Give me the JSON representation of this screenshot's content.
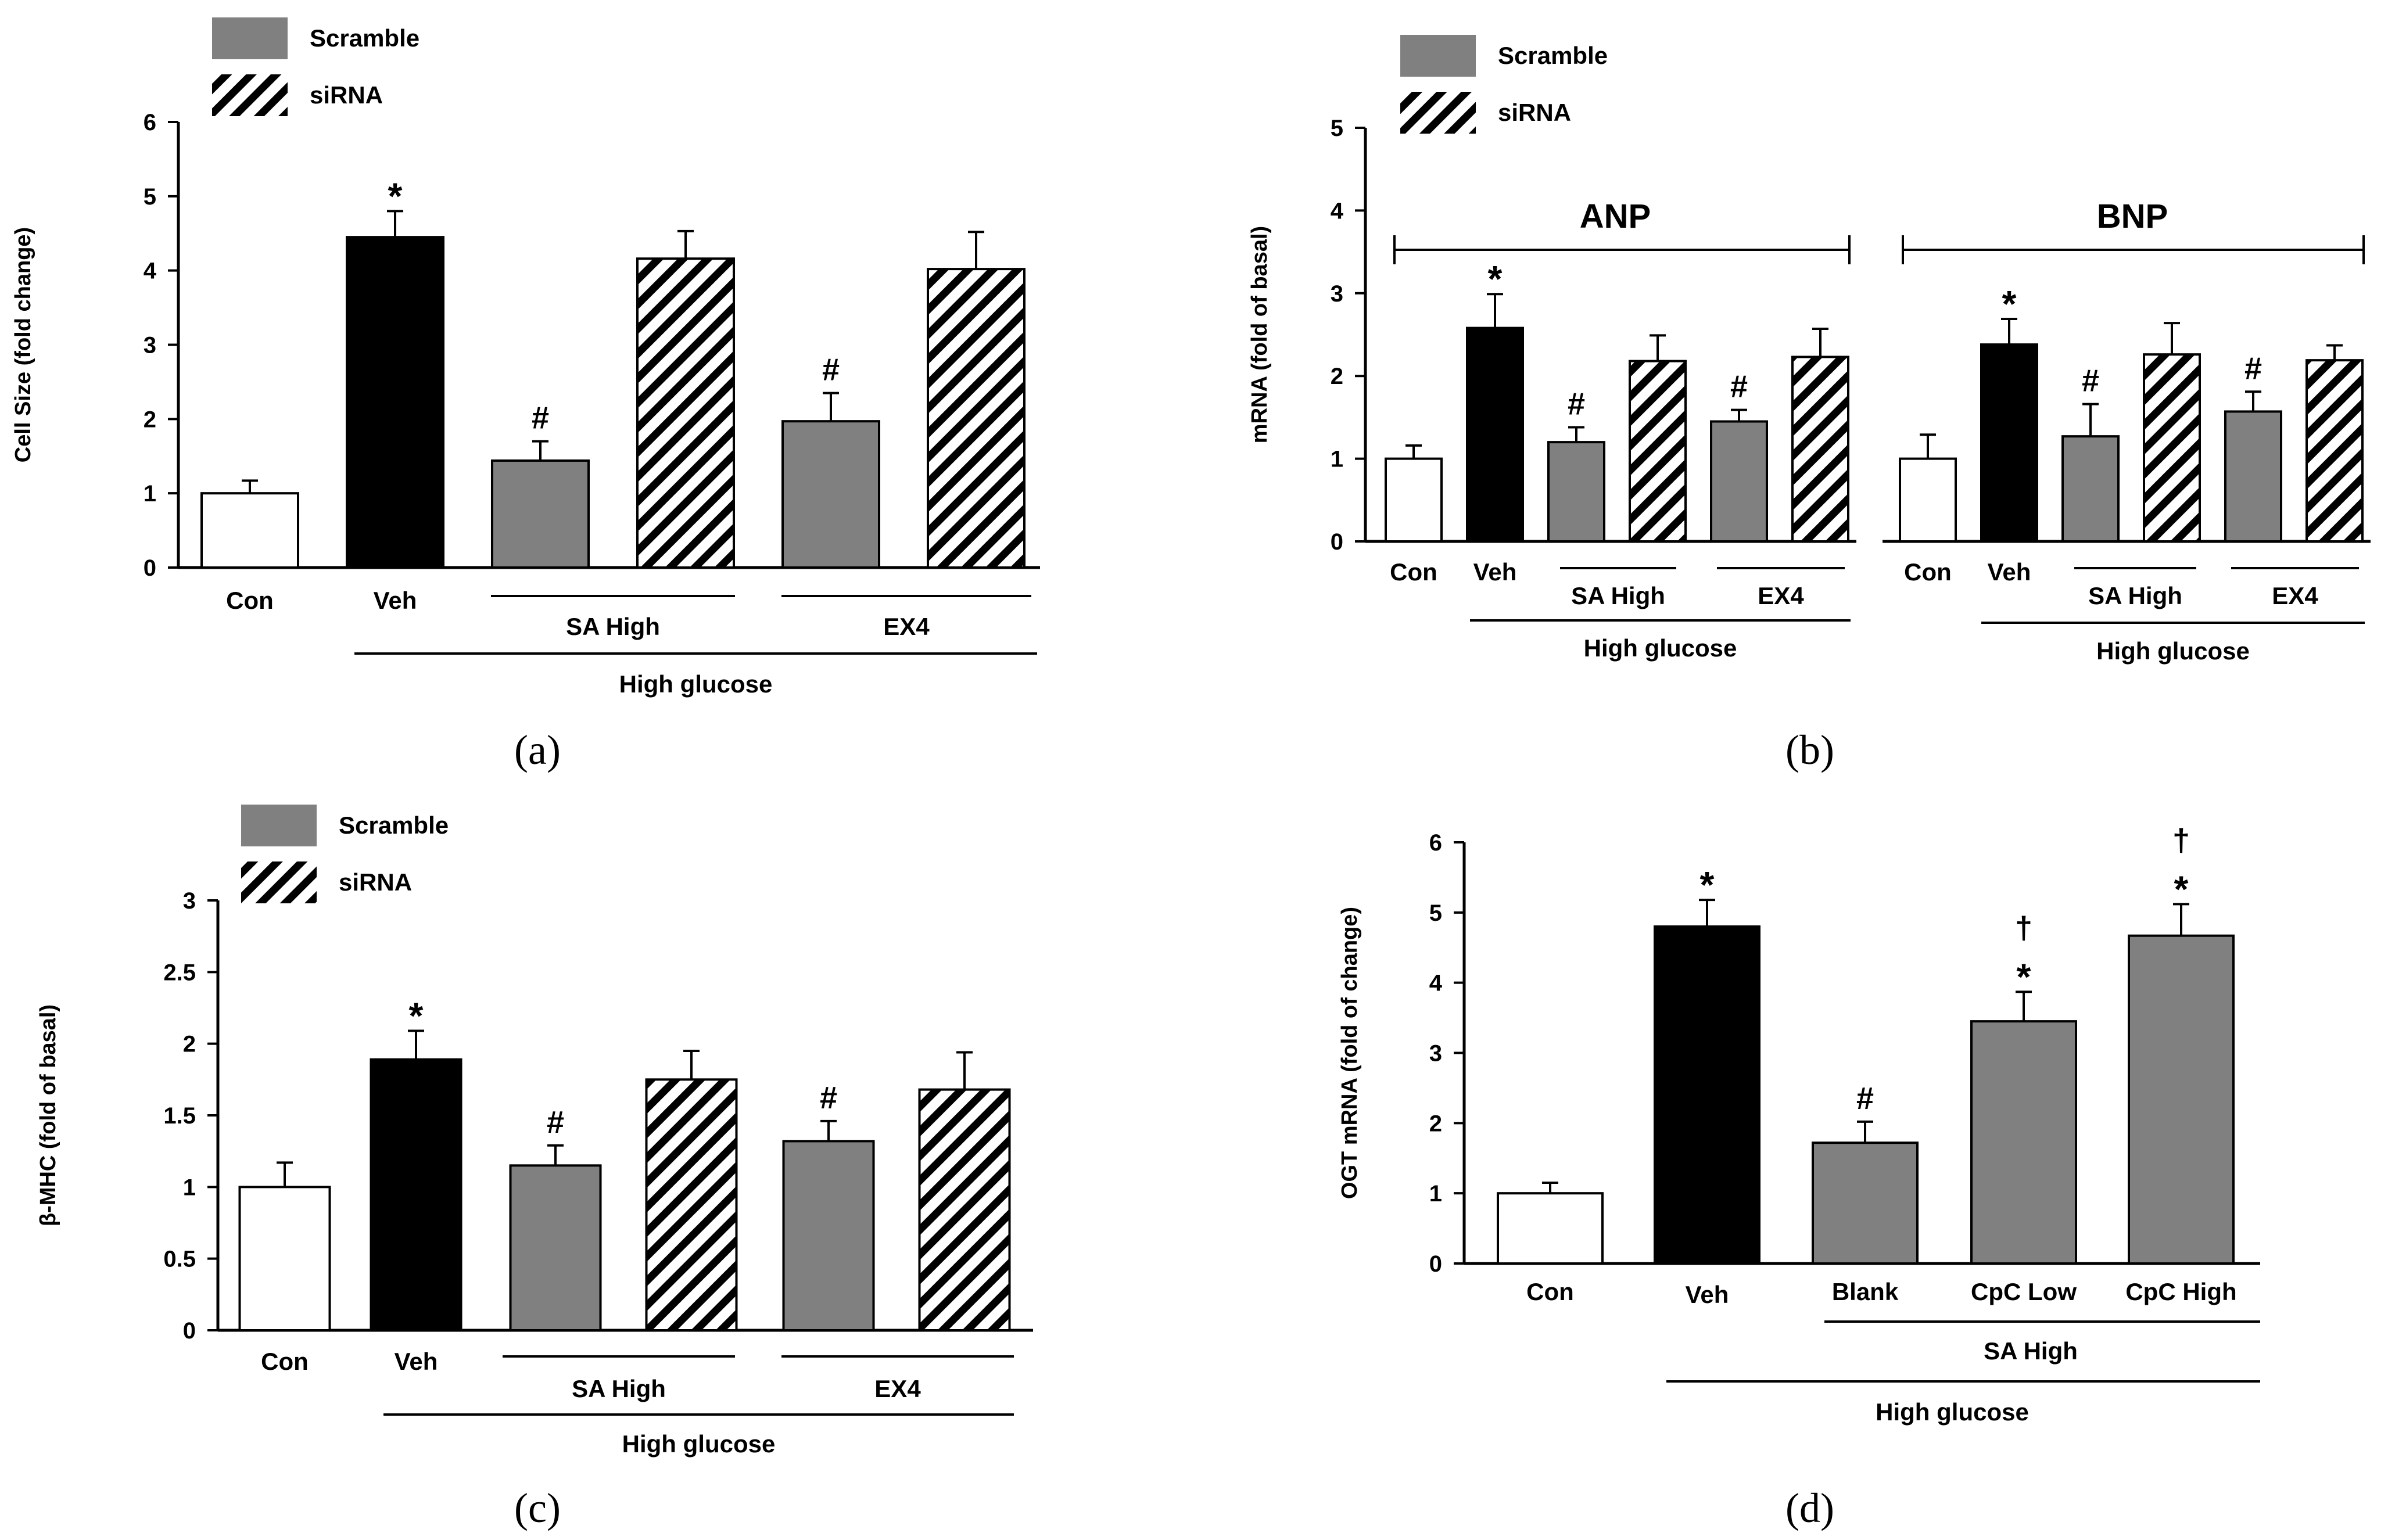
{
  "colors": {
    "white": "#ffffff",
    "black": "#000000",
    "gray": "#808080",
    "axis": "#000000"
  },
  "chart_data": [
    {
      "panel_label": "(a)",
      "type": "bar",
      "ylabel": "Cell Size (fold change)",
      "ylim": [
        0,
        6
      ],
      "yticks": [
        "0",
        "1",
        "2",
        "3",
        "4",
        "5",
        "6"
      ],
      "legend": [
        "Scramble",
        "siRNA"
      ],
      "categories": [
        "Con",
        "Veh",
        "SA High",
        "SA High",
        "EX4",
        "EX4"
      ],
      "fills": [
        "white",
        "black",
        "gray",
        "hatch",
        "gray",
        "hatch"
      ],
      "values": [
        1.0,
        4.45,
        1.44,
        4.16,
        1.97,
        4.02
      ],
      "errors": [
        0.17,
        0.35,
        0.26,
        0.37,
        0.38,
        0.5
      ],
      "annotations": [
        "",
        "*",
        "#",
        "",
        "#",
        ""
      ],
      "x_labels": [
        "Con",
        "Veh"
      ],
      "sub_groups": [
        "SA High",
        "EX4"
      ],
      "group": "High glucose"
    },
    {
      "panel_label": "(b)",
      "type": "bar",
      "ylabel": "mRNA (fold of basal)",
      "ylim": [
        0,
        5
      ],
      "yticks": [
        "0",
        "1",
        "2",
        "3",
        "4",
        "5"
      ],
      "legend": [
        "Scramble",
        "siRNA"
      ],
      "groups": [
        {
          "name": "ANP",
          "categories": [
            "Con",
            "Veh",
            "SA High",
            "SA High",
            "EX4",
            "EX4"
          ],
          "fills": [
            "white",
            "black",
            "gray",
            "hatch",
            "gray",
            "hatch"
          ],
          "values": [
            1.0,
            2.58,
            1.2,
            2.18,
            1.45,
            2.23
          ],
          "errors": [
            0.16,
            0.41,
            0.18,
            0.31,
            0.14,
            0.34
          ],
          "annotations": [
            "",
            "*",
            "#",
            "",
            "#",
            ""
          ],
          "x_labels": [
            "Con",
            "Veh"
          ],
          "sub_groups": [
            "SA High",
            "EX4"
          ],
          "group": "High glucose"
        },
        {
          "name": "BNP",
          "categories": [
            "Con",
            "Veh",
            "SA High",
            "SA High",
            "EX4",
            "EX4"
          ],
          "fills": [
            "white",
            "black",
            "gray",
            "hatch",
            "gray",
            "hatch"
          ],
          "values": [
            1.0,
            2.38,
            1.27,
            2.26,
            1.57,
            2.19
          ],
          "errors": [
            0.29,
            0.31,
            0.39,
            0.38,
            0.24,
            0.18
          ],
          "annotations": [
            "",
            "*",
            "#",
            "",
            "#",
            ""
          ],
          "x_labels": [
            "Con",
            "Veh"
          ],
          "sub_groups": [
            "SA High",
            "EX4"
          ],
          "group": "High glucose"
        }
      ]
    },
    {
      "panel_label": "(c)",
      "type": "bar",
      "ylabel": "β-MHC (fold of basal)",
      "ylim": [
        0,
        3
      ],
      "yticks": [
        "0",
        "0.5",
        "1",
        "1.5",
        "2",
        "2.5",
        "3"
      ],
      "legend": [
        "Scramble",
        "siRNA"
      ],
      "categories": [
        "Con",
        "Veh",
        "SA High",
        "SA High",
        "EX4",
        "EX4"
      ],
      "fills": [
        "white",
        "black",
        "gray",
        "hatch",
        "gray",
        "hatch"
      ],
      "values": [
        1.0,
        1.89,
        1.15,
        1.75,
        1.32,
        1.68
      ],
      "errors": [
        0.17,
        0.2,
        0.14,
        0.2,
        0.14,
        0.26
      ],
      "annotations": [
        "",
        "*",
        "#",
        "",
        "#",
        ""
      ],
      "x_labels": [
        "Con",
        "Veh"
      ],
      "sub_groups": [
        "SA High",
        "EX4"
      ],
      "group": "High glucose"
    },
    {
      "panel_label": "(d)",
      "type": "bar",
      "ylabel": "OGT mRNA (fold of change)",
      "ylim": [
        0,
        6
      ],
      "yticks": [
        "0",
        "1",
        "2",
        "3",
        "4",
        "5",
        "6"
      ],
      "categories": [
        "Con",
        "Veh",
        "Blank",
        "CpC Low",
        "CpC High"
      ],
      "fills": [
        "white",
        "black",
        "gray",
        "gray",
        "gray"
      ],
      "values": [
        1.0,
        4.8,
        1.72,
        3.45,
        4.67
      ],
      "errors": [
        0.15,
        0.38,
        0.3,
        0.42,
        0.45
      ],
      "annotations": [
        "",
        "*",
        "#",
        "†\n*",
        "†\n*"
      ],
      "sub_group": "SA High",
      "group": "High glucose"
    }
  ]
}
